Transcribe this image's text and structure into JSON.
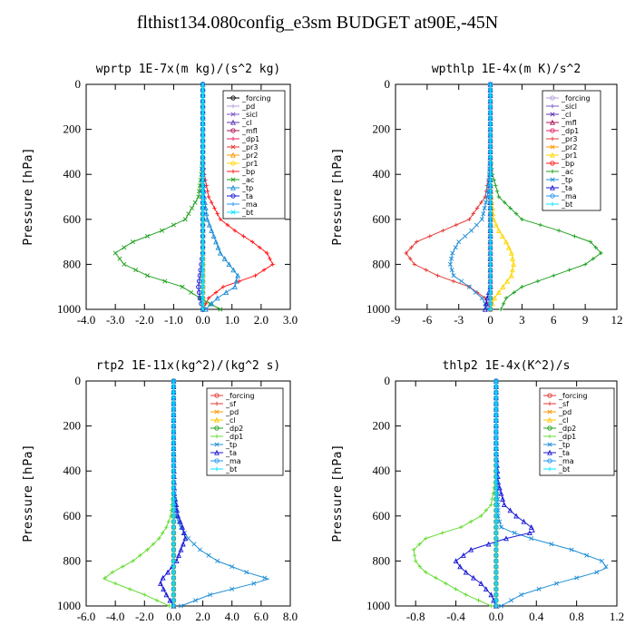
{
  "page": {
    "title": "flthist134.080config_e3sm  BUDGET at90E,-45N"
  },
  "chart_data": [
    {
      "type": "line",
      "title": "wprtp  1E-7x(m kg)/(s^2 kg)",
      "ylabel": "Pressure [hPa]",
      "xlim": [
        -4,
        3
      ],
      "ylim": [
        1000,
        0
      ],
      "xticks": [
        "-4.0",
        "-3.0",
        "-2.0",
        "-1.0",
        "0.0",
        "1.0",
        "2.0",
        "3.0"
      ],
      "xtick_values": [
        -4,
        -3,
        -2,
        -1,
        0,
        1,
        2,
        3
      ],
      "yticks": [
        "0",
        "200",
        "400",
        "600",
        "800",
        "1000"
      ],
      "ytick_values": [
        0,
        200,
        400,
        600,
        800,
        1000
      ],
      "legend_position": "top-right",
      "pressure": [
        0,
        300,
        400,
        500,
        600,
        650,
        700,
        750,
        800,
        850,
        900,
        950,
        1000
      ],
      "series": [
        {
          "name": "_forcing",
          "color": "#000000",
          "values": [
            0,
            0,
            0,
            0,
            0,
            0,
            0,
            0,
            0,
            0,
            0,
            0,
            0
          ]
        },
        {
          "name": "_pd",
          "color": "#b39ddb",
          "values": [
            0,
            0,
            0,
            0,
            0,
            0,
            0,
            0,
            0,
            0,
            0,
            0,
            0
          ]
        },
        {
          "name": "_sicl",
          "color": "#7e57c2",
          "values": [
            0,
            0,
            0,
            0,
            0,
            0,
            0,
            0,
            0,
            0,
            0,
            0,
            0
          ]
        },
        {
          "name": "_cl",
          "color": "#5e35b1",
          "values": [
            0,
            0,
            0,
            0,
            0,
            0,
            0,
            0,
            0,
            0,
            0,
            0,
            0
          ]
        },
        {
          "name": "_mfl",
          "color": "#ad1457",
          "values": [
            0,
            0,
            0,
            0,
            0,
            0,
            0,
            0,
            0,
            0,
            0,
            0,
            0
          ]
        },
        {
          "name": "_dp1",
          "color": "#e91e63",
          "values": [
            0,
            0,
            0,
            0,
            0,
            0,
            0,
            0,
            0,
            0,
            0,
            0,
            0
          ]
        },
        {
          "name": "_pr3",
          "color": "#e53935",
          "values": [
            0,
            0,
            0,
            0,
            0,
            0,
            0,
            0,
            0,
            0,
            0,
            0,
            0
          ]
        },
        {
          "name": "_pr2",
          "color": "#ff9800",
          "values": [
            0,
            0,
            0,
            0,
            0,
            0,
            0,
            0,
            0,
            0,
            0,
            0,
            0
          ]
        },
        {
          "name": "_pr1",
          "color": "#ffd600",
          "values": [
            0,
            0,
            0,
            0,
            0,
            0,
            0,
            0,
            0,
            0,
            0,
            0,
            0
          ]
        },
        {
          "name": "_bp",
          "color": "#ff1a1a",
          "values": [
            0,
            0,
            0.05,
            0.2,
            0.6,
            1.1,
            1.7,
            2.2,
            2.4,
            1.8,
            0.7,
            0.2,
            0
          ]
        },
        {
          "name": "_ac",
          "color": "#21a121",
          "values": [
            0,
            0,
            -0.05,
            -0.15,
            -0.6,
            -1.4,
            -2.4,
            -3.0,
            -2.7,
            -1.9,
            -0.7,
            -0.1,
            0.6
          ]
        },
        {
          "name": "_tp",
          "color": "#1f8fd6",
          "values": [
            0,
            0,
            0,
            0.05,
            0.15,
            0.3,
            0.45,
            0.6,
            0.9,
            1.2,
            1.1,
            0.5,
            0.1
          ]
        },
        {
          "name": "_ta",
          "color": "#1a1ad6",
          "values": [
            0,
            0,
            0,
            0,
            0,
            0,
            0,
            0,
            -0.05,
            -0.1,
            -0.15,
            -0.1,
            0
          ]
        },
        {
          "name": "_ma",
          "color": "#2196f3",
          "values": [
            0,
            0,
            0,
            0,
            0,
            0,
            0,
            0,
            0,
            0,
            0,
            0,
            0
          ]
        },
        {
          "name": "_bt",
          "color": "#00e5ff",
          "values": [
            0,
            0,
            0,
            0,
            0,
            0,
            0,
            0,
            0,
            0,
            0,
            0,
            0
          ]
        }
      ]
    },
    {
      "type": "line",
      "title": "wpthlp  1E-4x(m K)/s^2",
      "ylabel": "Pressure [hPa]",
      "xlim": [
        -9,
        12
      ],
      "ylim": [
        1000,
        0
      ],
      "xticks": [
        "-9",
        "-6",
        "-3",
        "0",
        "3",
        "6",
        "9",
        "12"
      ],
      "xtick_values": [
        -9,
        -6,
        -3,
        0,
        3,
        6,
        9,
        12
      ],
      "yticks": [
        "0",
        "200",
        "400",
        "600",
        "800",
        "1000"
      ],
      "ytick_values": [
        0,
        200,
        400,
        600,
        800,
        1000
      ],
      "legend_position": "top-right",
      "pressure": [
        0,
        300,
        400,
        500,
        600,
        650,
        700,
        750,
        800,
        850,
        900,
        950,
        1000
      ],
      "series": [
        {
          "name": "_forcing",
          "color": "#b39ddb",
          "values": [
            0,
            0,
            0,
            0,
            0,
            0,
            0,
            0,
            0,
            0,
            0,
            0,
            0
          ]
        },
        {
          "name": "_sicl",
          "color": "#7e57c2",
          "values": [
            0,
            0,
            0,
            0,
            0,
            0,
            0,
            0,
            0,
            0,
            0,
            0,
            0
          ]
        },
        {
          "name": "_cl",
          "color": "#5e35b1",
          "values": [
            0,
            0,
            0,
            0,
            0,
            0,
            0,
            0,
            0,
            0,
            0,
            0,
            0
          ]
        },
        {
          "name": "_mfl",
          "color": "#ad1457",
          "values": [
            0,
            0,
            0,
            0,
            0,
            0,
            0,
            0,
            0,
            0,
            0,
            0,
            0
          ]
        },
        {
          "name": "_dp1",
          "color": "#e91e63",
          "values": [
            0,
            0,
            0,
            0,
            0,
            0,
            0,
            0,
            0,
            0,
            0,
            0,
            0
          ]
        },
        {
          "name": "_pr3",
          "color": "#e53935",
          "values": [
            0,
            0,
            -0.1,
            -0.5,
            -2.0,
            -4.5,
            -7.0,
            -8.0,
            -7.2,
            -5.0,
            -2.0,
            -0.5,
            0
          ]
        },
        {
          "name": "_pr2",
          "color": "#ff9800",
          "values": [
            0,
            0,
            0,
            0,
            0,
            0,
            0,
            0,
            0,
            0,
            0,
            0,
            0
          ]
        },
        {
          "name": "_pr1",
          "color": "#ffd600",
          "values": [
            0,
            0,
            0,
            0.1,
            0.3,
            0.8,
            1.5,
            2.0,
            2.2,
            2.0,
            1.2,
            0.4,
            0
          ]
        },
        {
          "name": "_bp",
          "color": "#ff1a1a",
          "values": [
            0,
            0,
            0,
            0,
            0,
            0,
            0,
            0,
            0,
            0,
            0,
            0,
            0
          ]
        },
        {
          "name": "_ac",
          "color": "#21a121",
          "values": [
            0,
            0,
            0.2,
            0.8,
            3.0,
            6.5,
            9.5,
            10.5,
            9.0,
            6.0,
            3.0,
            1.5,
            1.0
          ]
        },
        {
          "name": "_tp",
          "color": "#1f8fd6",
          "values": [
            0,
            0,
            -0.1,
            -0.3,
            -0.8,
            -1.8,
            -3.0,
            -3.6,
            -3.8,
            -3.5,
            -2.0,
            -0.8,
            -0.2
          ]
        },
        {
          "name": "_ta",
          "color": "#1a1ad6",
          "values": [
            0,
            0,
            0,
            0,
            0,
            0,
            0,
            0,
            0,
            0,
            0,
            -0.3,
            -0.5
          ]
        },
        {
          "name": "_ma",
          "color": "#2196f3",
          "values": [
            0,
            0,
            0,
            0,
            0,
            0,
            0,
            0,
            0,
            0,
            0,
            0,
            0
          ]
        },
        {
          "name": "_bt",
          "color": "#00e5ff",
          "values": [
            0,
            0,
            0,
            0,
            0,
            0,
            0,
            0,
            0,
            0,
            0,
            0,
            0
          ]
        }
      ]
    },
    {
      "type": "line",
      "title": "rtp2  1E-11x(kg^2)/(kg^2 s)",
      "ylabel": "Pressure [hPa]",
      "xlim": [
        -6,
        8
      ],
      "ylim": [
        1000,
        0
      ],
      "xticks": [
        "-6.0",
        "-4.0",
        "-2.0",
        "0.0",
        "2.0",
        "4.0",
        "6.0",
        "8.0"
      ],
      "xtick_values": [
        -6,
        -4,
        -2,
        0,
        2,
        4,
        6,
        8
      ],
      "yticks": [
        "0",
        "200",
        "400",
        "600",
        "800",
        "1000"
      ],
      "ytick_values": [
        0,
        200,
        400,
        600,
        800,
        1000
      ],
      "legend_position": "top-right",
      "pressure": [
        0,
        300,
        500,
        600,
        650,
        700,
        750,
        800,
        850,
        880,
        900,
        950,
        1000
      ],
      "series": [
        {
          "name": "_forcing",
          "color": "#e53935",
          "values": [
            0,
            0,
            0,
            0,
            0,
            0,
            0,
            0,
            0,
            0,
            0,
            0,
            0
          ]
        },
        {
          "name": "_sf",
          "color": "#e53935",
          "values": [
            0,
            0,
            0,
            0,
            0,
            0,
            0,
            0,
            0,
            0,
            0,
            0,
            0
          ]
        },
        {
          "name": "_pd",
          "color": "#ff9800",
          "values": [
            0,
            0,
            0,
            0,
            0,
            0,
            0,
            0,
            0,
            0,
            0,
            0,
            0
          ]
        },
        {
          "name": "_cl",
          "color": "#ffc400",
          "values": [
            0,
            0,
            0,
            0,
            0,
            0,
            0,
            0,
            0,
            0,
            0,
            0,
            0
          ]
        },
        {
          "name": "_dp2",
          "color": "#21a121",
          "values": [
            0,
            0,
            0,
            0,
            0,
            0,
            0,
            0,
            0,
            0,
            0,
            0,
            0
          ]
        },
        {
          "name": "_dp1",
          "color": "#66dd33",
          "values": [
            0,
            0,
            -0.05,
            -0.2,
            -0.5,
            -1.0,
            -1.8,
            -2.8,
            -4.2,
            -4.8,
            -4.0,
            -2.0,
            -0.3
          ]
        },
        {
          "name": "_tp",
          "color": "#1f8fd6",
          "values": [
            0,
            0,
            0.05,
            0.2,
            0.5,
            1.0,
            1.8,
            3.0,
            5.0,
            6.5,
            5.5,
            2.5,
            0.5
          ]
        },
        {
          "name": "_ta",
          "color": "#1a1ad6",
          "values": [
            0,
            0,
            0.05,
            0.3,
            0.6,
            0.8,
            0.5,
            0.2,
            -0.4,
            -0.8,
            -0.9,
            -0.5,
            0
          ]
        },
        {
          "name": "_ma",
          "color": "#2196f3",
          "values": [
            0,
            0,
            0,
            0,
            0,
            0,
            0,
            0,
            0,
            0,
            0,
            0,
            0
          ]
        },
        {
          "name": "_bt",
          "color": "#00e5ff",
          "values": [
            0,
            0,
            0,
            0,
            0,
            0,
            0,
            0,
            0,
            0,
            0,
            0,
            0
          ]
        }
      ]
    },
    {
      "type": "line",
      "title": "thlp2  1E-4x(K^2)/s",
      "ylabel": "Pressure [hPa]",
      "xlim": [
        -1.0,
        1.2
      ],
      "ylim": [
        1000,
        0
      ],
      "xticks": [
        "-0.8",
        "-0.4",
        "0.0",
        "0.4",
        "0.8",
        "1.2"
      ],
      "xtick_values": [
        -0.8,
        -0.4,
        0,
        0.4,
        0.8,
        1.2
      ],
      "yticks": [
        "0",
        "200",
        "400",
        "600",
        "800",
        "1000"
      ],
      "ytick_values": [
        0,
        200,
        400,
        600,
        800,
        1000
      ],
      "legend_position": "top-right",
      "pressure": [
        0,
        300,
        450,
        550,
        600,
        650,
        670,
        700,
        750,
        800,
        830,
        850,
        900,
        950,
        1000
      ],
      "series": [
        {
          "name": "_forcing",
          "color": "#e53935",
          "values": [
            0,
            0,
            0,
            0,
            0,
            0,
            0,
            0,
            0,
            0,
            0,
            0,
            0,
            0,
            0
          ]
        },
        {
          "name": "_sf",
          "color": "#e53935",
          "values": [
            0,
            0,
            0,
            0,
            0,
            0,
            0,
            0,
            0,
            0,
            0,
            0,
            0,
            0,
            0
          ]
        },
        {
          "name": "_pd",
          "color": "#ff9800",
          "values": [
            0,
            0,
            0,
            0,
            0,
            0,
            0,
            0,
            0,
            0,
            0,
            0,
            0,
            0,
            0
          ]
        },
        {
          "name": "_cl",
          "color": "#ffc400",
          "values": [
            0,
            0,
            0,
            0,
            0,
            0,
            0,
            0,
            0,
            0,
            0,
            0,
            0,
            0,
            0
          ]
        },
        {
          "name": "_dp2",
          "color": "#21a121",
          "values": [
            0,
            0,
            0,
            0,
            0,
            0,
            0,
            0,
            0,
            0,
            0,
            0,
            0,
            0,
            0
          ]
        },
        {
          "name": "_dp1",
          "color": "#66dd33",
          "values": [
            0,
            0,
            -0.01,
            -0.05,
            -0.15,
            -0.35,
            -0.5,
            -0.7,
            -0.82,
            -0.8,
            -0.75,
            -0.7,
            -0.5,
            -0.3,
            -0.05
          ]
        },
        {
          "name": "_tp",
          "color": "#1f8fd6",
          "values": [
            0,
            0,
            0.01,
            0.02,
            0.02,
            0.05,
            0.15,
            0.35,
            0.75,
            1.05,
            1.1,
            1.0,
            0.6,
            0.25,
            0.05
          ]
        },
        {
          "name": "_ta",
          "color": "#1a1ad6",
          "values": [
            0,
            0,
            0.02,
            0.08,
            0.2,
            0.35,
            0.38,
            0.1,
            -0.25,
            -0.4,
            -0.35,
            -0.3,
            -0.15,
            -0.05,
            0
          ]
        },
        {
          "name": "_ma",
          "color": "#2196f3",
          "values": [
            0,
            0,
            0,
            0,
            0,
            0,
            0,
            0,
            0,
            0,
            0,
            0,
            0,
            0,
            0
          ]
        },
        {
          "name": "_bt",
          "color": "#00e5ff",
          "values": [
            0,
            0,
            0,
            0,
            0,
            0,
            0,
            0,
            0,
            0,
            0,
            0,
            0,
            0,
            0
          ]
        }
      ]
    }
  ]
}
